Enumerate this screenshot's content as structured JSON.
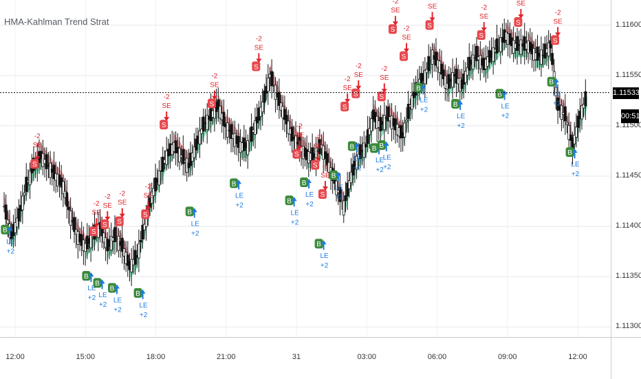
{
  "window": {
    "title": "HMA-Kahlman Trend Strat"
  },
  "current_price": "1.11533",
  "countdown": "00:51",
  "colors": {
    "bull_fill": "#7be3b4",
    "bear_fill": "#f2a2a8",
    "buy_marker": "#3b8a3b",
    "sell_marker": "#e8484f",
    "long_text": "#1e7be0",
    "short_text": "#e0242b",
    "candle": "#111111",
    "price_line": "#000000"
  },
  "chart_data": {
    "type": "candlestick",
    "title": "HMA-Kahlman Trend Strat",
    "y_axis": {
      "ticks": [
        "1.11600",
        "1.11550",
        "1.11500",
        "1.11450",
        "1.11400",
        "1.11350",
        "1.11300"
      ],
      "ylim": [
        1.1129,
        1.11625
      ]
    },
    "x_axis": {
      "ticks": [
        "12:00",
        "15:00",
        "18:00",
        "21:00",
        "31",
        "03:00",
        "06:00",
        "09:00",
        "12:00"
      ]
    },
    "close_series": [
      [
        0,
        1.1142
      ],
      [
        2,
        1.1139
      ],
      [
        4,
        1.1141
      ],
      [
        6,
        1.1144
      ],
      [
        8,
        1.1146
      ],
      [
        10,
        1.1147
      ],
      [
        12,
        1.1146
      ],
      [
        14,
        1.1145
      ],
      [
        16,
        1.1144
      ],
      [
        18,
        1.1141
      ],
      [
        20,
        1.1139
      ],
      [
        22,
        1.1138
      ],
      [
        24,
        1.1139
      ],
      [
        26,
        1.114
      ],
      [
        28,
        1.1138
      ],
      [
        30,
        1.1139
      ],
      [
        32,
        1.1138
      ],
      [
        34,
        1.1136
      ],
      [
        36,
        1.1137
      ],
      [
        38,
        1.114
      ],
      [
        40,
        1.1143
      ],
      [
        42,
        1.1145
      ],
      [
        44,
        1.1147
      ],
      [
        46,
        1.1148
      ],
      [
        48,
        1.1147
      ],
      [
        50,
        1.1146
      ],
      [
        52,
        1.1148
      ],
      [
        54,
        1.115
      ],
      [
        56,
        1.1151
      ],
      [
        58,
        1.1152
      ],
      [
        60,
        1.115
      ],
      [
        62,
        1.1149
      ],
      [
        64,
        1.1148
      ],
      [
        66,
        1.1148
      ],
      [
        68,
        1.115
      ],
      [
        70,
        1.1152
      ],
      [
        72,
        1.1155
      ],
      [
        74,
        1.1153
      ],
      [
        76,
        1.1151
      ],
      [
        78,
        1.1149
      ],
      [
        80,
        1.1148
      ],
      [
        82,
        1.1147
      ],
      [
        84,
        1.1147
      ],
      [
        86,
        1.1148
      ],
      [
        88,
        1.1146
      ],
      [
        90,
        1.1144
      ],
      [
        92,
        1.1142
      ],
      [
        94,
        1.1145
      ],
      [
        96,
        1.1147
      ],
      [
        98,
        1.1148
      ],
      [
        100,
        1.1151
      ],
      [
        102,
        1.115
      ],
      [
        104,
        1.1151
      ],
      [
        106,
        1.115
      ],
      [
        108,
        1.1149
      ],
      [
        110,
        1.1152
      ],
      [
        112,
        1.1154
      ],
      [
        114,
        1.1155
      ],
      [
        116,
        1.1157
      ],
      [
        118,
        1.1156
      ],
      [
        120,
        1.1154
      ],
      [
        122,
        1.1155
      ],
      [
        124,
        1.1154
      ],
      [
        126,
        1.1156
      ],
      [
        128,
        1.1157
      ],
      [
        130,
        1.1156
      ],
      [
        132,
        1.1157
      ],
      [
        134,
        1.1158
      ],
      [
        136,
        1.1159
      ],
      [
        138,
        1.1158
      ],
      [
        140,
        1.1158
      ],
      [
        142,
        1.1158
      ],
      [
        144,
        1.1157
      ],
      [
        146,
        1.1157
      ],
      [
        148,
        1.1158
      ],
      [
        150,
        1.1152
      ],
      [
        152,
        1.1151
      ],
      [
        154,
        1.1148
      ],
      [
        156,
        1.1151
      ],
      [
        158,
        1.1153
      ]
    ],
    "x_range": [
      0,
      158
    ],
    "trades": [
      {
        "side": "buy",
        "x": 1,
        "y": 1.11403,
        "action": "LE",
        "qty": "+2"
      },
      {
        "side": "sell",
        "x": 9,
        "y": 1.11456,
        "action": "SE",
        "qty": "-2"
      },
      {
        "side": "buy",
        "x": 23,
        "y": 1.11357,
        "action": "LE",
        "qty": "+2"
      },
      {
        "side": "sell",
        "x": 25,
        "y": 1.11389,
        "action": "SE",
        "qty": "-2"
      },
      {
        "side": "buy",
        "x": 26,
        "y": 1.1135,
        "action": "LE",
        "qty": "+2"
      },
      {
        "side": "sell",
        "x": 28,
        "y": 1.11396,
        "action": "SE",
        "qty": "-2"
      },
      {
        "side": "buy",
        "x": 30,
        "y": 1.11345,
        "action": "LE",
        "qty": "+2"
      },
      {
        "side": "sell",
        "x": 32,
        "y": 1.11399,
        "action": "SE",
        "qty": "-2"
      },
      {
        "side": "buy",
        "x": 37,
        "y": 1.1134,
        "action": "LE",
        "qty": "+2"
      },
      {
        "side": "sell",
        "x": 39,
        "y": 1.11406,
        "action": "SE",
        "qty": "-2"
      },
      {
        "side": "sell",
        "x": 44,
        "y": 1.11495,
        "action": "SE",
        "qty": "-2"
      },
      {
        "side": "buy",
        "x": 51,
        "y": 1.11421,
        "action": "LE",
        "qty": "+2"
      },
      {
        "side": "sell",
        "x": 57,
        "y": 1.11516,
        "action": "SE",
        "qty": "-2"
      },
      {
        "side": "buy",
        "x": 63,
        "y": 1.11449,
        "action": "LE",
        "qty": "+2"
      },
      {
        "side": "sell",
        "x": 69,
        "y": 1.11553,
        "action": "SE",
        "qty": "-2"
      },
      {
        "side": "sell",
        "x": 80,
        "y": 1.11466,
        "action": "SE",
        "qty": "-2"
      },
      {
        "side": "buy",
        "x": 78,
        "y": 1.11432,
        "action": "LE",
        "qty": "+2"
      },
      {
        "side": "sell",
        "x": 85,
        "y": 1.11455,
        "action": "SE",
        "qty": "-2"
      },
      {
        "side": "buy",
        "x": 82,
        "y": 1.1145,
        "action": "LE",
        "qty": "+2"
      },
      {
        "side": "sell",
        "x": 87,
        "y": 1.11426,
        "action": "SE",
        "qty": "-2"
      },
      {
        "side": "buy",
        "x": 86,
        "y": 1.11389,
        "action": "LE",
        "qty": "+2"
      },
      {
        "side": "buy",
        "x": 90,
        "y": 1.11457,
        "action": "LE",
        "qty": "+2"
      },
      {
        "side": "buy",
        "x": 95,
        "y": 1.11486,
        "action": "LE",
        "qty": "+2"
      },
      {
        "side": "sell",
        "x": 93,
        "y": 1.11513,
        "action": "SE",
        "qty": "-2"
      },
      {
        "side": "sell",
        "x": 96,
        "y": 1.11526,
        "action": "SE",
        "qty": "-2"
      },
      {
        "side": "buy",
        "x": 101,
        "y": 1.11484,
        "action": "LE",
        "qty": "+2"
      },
      {
        "side": "sell",
        "x": 103,
        "y": 1.11523,
        "action": "SE",
        "qty": "-2"
      },
      {
        "side": "sell",
        "x": 106,
        "y": 1.1159,
        "action": "SE",
        "qty": "-2"
      },
      {
        "side": "buy",
        "x": 103,
        "y": 1.11487,
        "action": "LE",
        "qty": "+2"
      },
      {
        "side": "sell",
        "x": 109,
        "y": 1.11563,
        "action": "SE",
        "qty": "-2"
      },
      {
        "side": "buy",
        "x": 113,
        "y": 1.11544,
        "action": "LE",
        "qty": "+2"
      },
      {
        "side": "sell",
        "x": 116,
        "y": 1.11594,
        "action": "SE",
        "qty": "-2"
      },
      {
        "side": "buy",
        "x": 123,
        "y": 1.11528,
        "action": "LE",
        "qty": "+2"
      },
      {
        "side": "sell",
        "x": 130,
        "y": 1.11584,
        "action": "SE",
        "qty": "-2"
      },
      {
        "side": "buy",
        "x": 135,
        "y": 1.11538,
        "action": "LE",
        "qty": "+2"
      },
      {
        "side": "sell",
        "x": 140,
        "y": 1.11597,
        "action": "SE",
        "qty": "-2"
      },
      {
        "side": "buy",
        "x": 149,
        "y": 1.1155,
        "action": "LE",
        "qty": "+2"
      },
      {
        "side": "sell",
        "x": 150,
        "y": 1.11579,
        "action": "SE",
        "qty": "-2"
      },
      {
        "side": "buy",
        "x": 154,
        "y": 1.1148,
        "action": "LE",
        "qty": "+2"
      }
    ]
  }
}
